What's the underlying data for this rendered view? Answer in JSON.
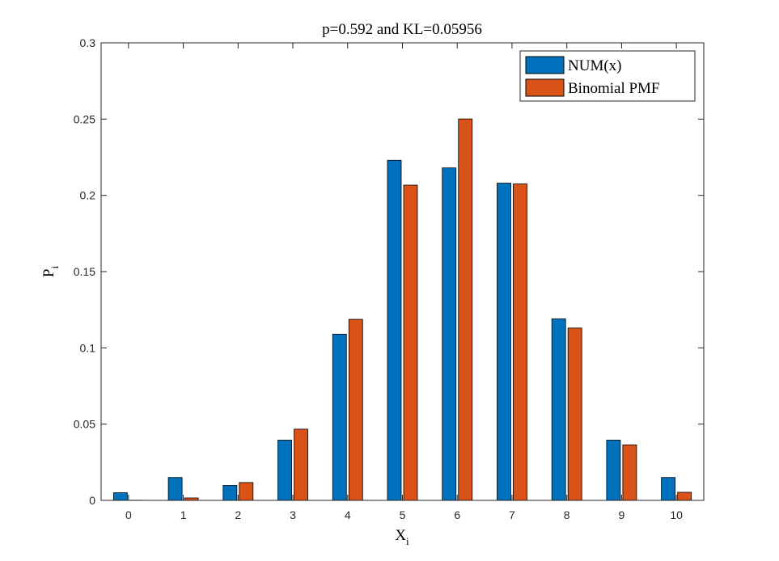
{
  "chart_data": {
    "type": "bar",
    "title": "p=0.592 and KL=0.05956",
    "xlabel": "X",
    "xlabel_sub": "i",
    "ylabel": "P",
    "ylabel_sub": "i",
    "categories": [
      "0",
      "1",
      "2",
      "3",
      "4",
      "5",
      "6",
      "7",
      "8",
      "9",
      "10"
    ],
    "ylim": [
      0,
      0.3
    ],
    "yticks": [
      "0",
      "0.05",
      "0.1",
      "0.15",
      "0.2",
      "0.25",
      "0.3"
    ],
    "ytick_values": [
      0,
      0.05,
      0.1,
      0.15,
      0.2,
      0.25,
      0.3
    ],
    "grid": false,
    "legend_position": "top-right",
    "series": [
      {
        "name": "NUM(x)",
        "color": "#0072BD",
        "values": [
          0.005,
          0.015,
          0.0098,
          0.0395,
          0.109,
          0.223,
          0.218,
          0.208,
          0.119,
          0.0395,
          0.015
        ]
      },
      {
        "name": "Binomial PMF",
        "color": "#D95319",
        "values": [
          0.0001,
          0.0016,
          0.0117,
          0.0467,
          0.1187,
          0.2067,
          0.2501,
          0.2075,
          0.113,
          0.0364,
          0.0053
        ]
      }
    ]
  }
}
